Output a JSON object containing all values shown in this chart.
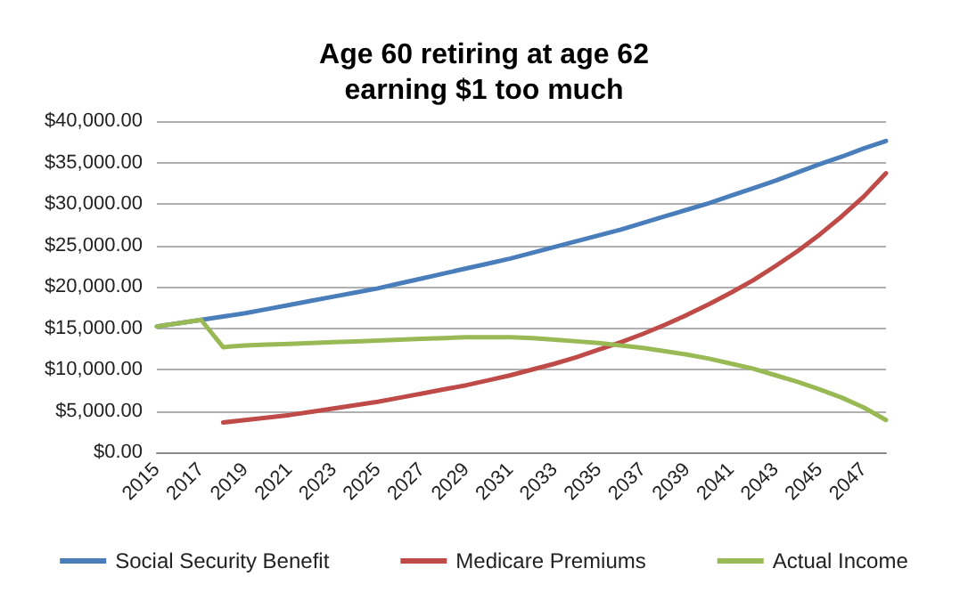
{
  "chart_data": {
    "type": "line",
    "title": "Age 60 retiring at age 62\nearning $1 too much",
    "categories": [
      "2015",
      null,
      "2017",
      null,
      "2019",
      null,
      "2021",
      null,
      "2023",
      null,
      "2025",
      null,
      "2027",
      null,
      "2029",
      null,
      "2031",
      null,
      "2033",
      null,
      "2035",
      null,
      "2037",
      null,
      "2039",
      null,
      "2041",
      null,
      "2043",
      null,
      "2045",
      null,
      "2047",
      null
    ],
    "series": [
      {
        "name": "Social Security Benefit",
        "color": "#4a7ebb",
        "values": [
          15200,
          15600,
          16000,
          16400,
          16800,
          17300,
          17800,
          18300,
          18800,
          19300,
          19800,
          20400,
          21000,
          21600,
          22200,
          22800,
          23400,
          24100,
          24800,
          25500,
          26200,
          26900,
          27700,
          28500,
          29300,
          30100,
          31000,
          31900,
          32800,
          33800,
          34800,
          35700,
          36700,
          37600
        ]
      },
      {
        "name": "Medicare Premiums",
        "color": "#be4b48",
        "values": [
          null,
          null,
          null,
          3600,
          3900,
          4200,
          4500,
          4900,
          5300,
          5700,
          6100,
          6600,
          7100,
          7600,
          8100,
          8700,
          9300,
          10000,
          10700,
          11500,
          12400,
          13300,
          14300,
          15400,
          16600,
          17900,
          19300,
          20800,
          22500,
          24300,
          26300,
          28500,
          30900,
          33700
        ]
      },
      {
        "name": "Actual Income",
        "color": "#98b954",
        "values": [
          15200,
          15600,
          16000,
          12700,
          12900,
          13000,
          13100,
          13200,
          13300,
          13400,
          13500,
          13600,
          13700,
          13800,
          13900,
          13900,
          13900,
          13800,
          13600,
          13400,
          13200,
          12900,
          12600,
          12200,
          11800,
          11300,
          10700,
          10100,
          9300,
          8500,
          7600,
          6600,
          5400,
          3900
        ]
      }
    ],
    "ylim": [
      0,
      40000
    ],
    "yticks": [
      {
        "value": 0,
        "label": "$0.00"
      },
      {
        "value": 5000,
        "label": "$5,000.00"
      },
      {
        "value": 10000,
        "label": "$10,000.00"
      },
      {
        "value": 15000,
        "label": "$15,000.00"
      },
      {
        "value": 20000,
        "label": "$20,000.00"
      },
      {
        "value": 25000,
        "label": "$25,000.00"
      },
      {
        "value": 30000,
        "label": "$30,000.00"
      },
      {
        "value": 35000,
        "label": "$35,000.00"
      },
      {
        "value": 40000,
        "label": "$40,000.00"
      }
    ],
    "grid": "y",
    "legend": "bottom",
    "marker": "none",
    "line_style": "solid"
  }
}
